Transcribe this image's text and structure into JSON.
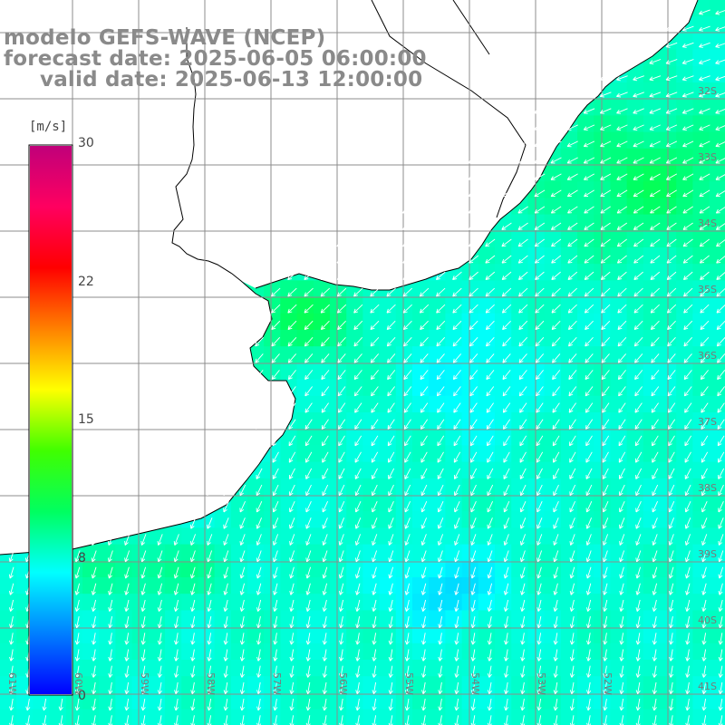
{
  "header": {
    "model_line": "modelo GEFS-WAVE (NCEP)",
    "forecast_line": "forecast date: 2025-06-05 06:00:00",
    "valid_line": "valid date: 2025-06-13 12:00:00"
  },
  "colorbar": {
    "unit": "[m/s]",
    "min": 0,
    "max": 30,
    "ticks": [
      "0",
      "8",
      "15",
      "22",
      "30"
    ],
    "stops": [
      "#0000ff",
      "#0080ff",
      "#00ffff",
      "#00ff60",
      "#40ff00",
      "#ffff00",
      "#ff8000",
      "#ff0000",
      "#ff0060",
      "#c0007a"
    ]
  },
  "map": {
    "land_color": "#ffffff",
    "grid_color": "#8c8c8c",
    "arrow_color": "#ffffff",
    "coast_color": "#000000",
    "lon_labels": [
      "61W",
      "60W",
      "59W",
      "58W",
      "57W",
      "56W",
      "55W",
      "54W",
      "53W",
      "52W"
    ],
    "lat_labels": [
      "32S",
      "33S",
      "34S",
      "35S",
      "36S",
      "37S",
      "38S",
      "39S",
      "40S",
      "41S"
    ]
  }
}
